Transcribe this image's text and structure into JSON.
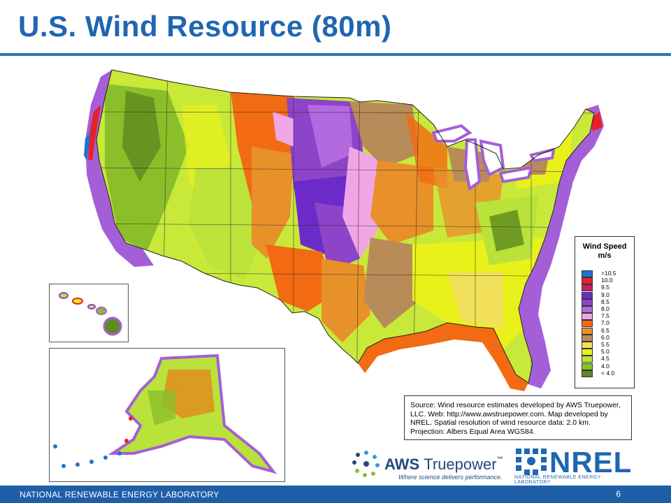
{
  "title": "U.S. Wind Resource (80m)",
  "legend": {
    "title_line1": "Wind Speed",
    "title_line2": "m/s",
    "items": [
      {
        "label": ">10.5",
        "color": "#1e73d2"
      },
      {
        "label": "10.0",
        "color": "#e8202a"
      },
      {
        "label": "9.5",
        "color": "#d0186e"
      },
      {
        "label": "9.0",
        "color": "#6c2bc9"
      },
      {
        "label": "8.5",
        "color": "#8e44c8"
      },
      {
        "label": "8.0",
        "color": "#b36ae0"
      },
      {
        "label": "7.5",
        "color": "#f0a6e6"
      },
      {
        "label": "7.0",
        "color": "#f26a12"
      },
      {
        "label": "6.5",
        "color": "#e8902a"
      },
      {
        "label": "6.0",
        "color": "#b88c58"
      },
      {
        "label": "5.5",
        "color": "#f2e05a"
      },
      {
        "label": "5.0",
        "color": "#e8f21a"
      },
      {
        "label": "4.5",
        "color": "#b9e23a"
      },
      {
        "label": "4.0",
        "color": "#8bbf2a"
      },
      {
        "label": "< 4.0",
        "color": "#5e8a1e"
      }
    ]
  },
  "source": {
    "text": "Source: Wind resource estimates developed by AWS Truepower, LLC. Web: http://www.awstruepower.com. Map developed by NREL.  Spatial resolution of wind resource data: 2.0 km. Projection: Albers Equal Area WGS84."
  },
  "logos": {
    "aws_name": "AWS",
    "aws_name2": "Truepower",
    "aws_tm": "™",
    "aws_tagline": "Where science delivers performance.",
    "nrel_name": "NREL",
    "nrel_full": "NATIONAL RENEWABLE ENERGY LABORATORY"
  },
  "footer": {
    "org": "NATIONAL RENEWABLE ENERGY LABORATORY",
    "page": "6"
  }
}
